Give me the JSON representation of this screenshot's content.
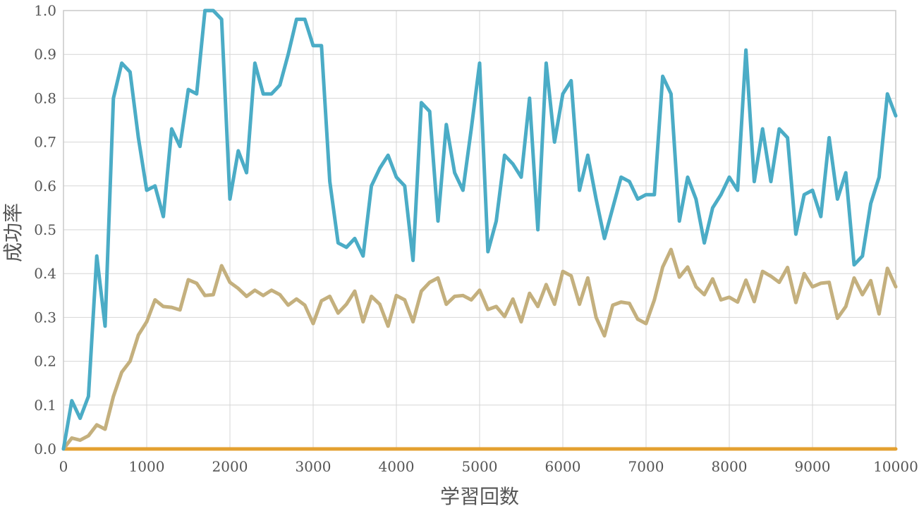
{
  "chart_data": {
    "type": "line",
    "xlabel": "学習回数",
    "ylabel": "成功率",
    "xlim": [
      0,
      10000
    ],
    "ylim": [
      0,
      1.0
    ],
    "x_ticks": [
      "0",
      "1000",
      "2000",
      "3000",
      "4000",
      "5000",
      "6000",
      "7000",
      "8000",
      "9000",
      "10000"
    ],
    "y_ticks": [
      "0.0",
      "0.1",
      "0.2",
      "0.3",
      "0.4",
      "0.5",
      "0.6",
      "0.7",
      "0.8",
      "0.9",
      "1.0"
    ],
    "grid": true,
    "x": [
      0,
      100,
      200,
      300,
      400,
      500,
      600,
      700,
      800,
      900,
      1000,
      1100,
      1200,
      1300,
      1400,
      1500,
      1600,
      1700,
      1800,
      1900,
      2000,
      2100,
      2200,
      2300,
      2400,
      2500,
      2600,
      2700,
      2800,
      2900,
      3000,
      3100,
      3200,
      3300,
      3400,
      3500,
      3600,
      3700,
      3800,
      3900,
      4000,
      4100,
      4200,
      4300,
      4400,
      4500,
      4600,
      4700,
      4800,
      4900,
      5000,
      5100,
      5200,
      5300,
      5400,
      5500,
      5600,
      5700,
      5800,
      5900,
      6000,
      6100,
      6200,
      6300,
      6400,
      6500,
      6600,
      6700,
      6800,
      6900,
      7000,
      7100,
      7200,
      7300,
      7400,
      7500,
      7600,
      7700,
      7800,
      7900,
      8000,
      8100,
      8200,
      8300,
      8400,
      8500,
      8600,
      8700,
      8800,
      8900,
      9000,
      9100,
      9200,
      9300,
      9400,
      9500,
      9600,
      9700,
      9800,
      9900,
      10000
    ],
    "series": [
      {
        "color": "#4bacc6",
        "values": [
          0.0,
          0.11,
          0.07,
          0.12,
          0.44,
          0.28,
          0.8,
          0.88,
          0.86,
          0.71,
          0.59,
          0.6,
          0.53,
          0.73,
          0.69,
          0.82,
          0.81,
          1.0,
          1.0,
          0.98,
          0.57,
          0.68,
          0.63,
          0.88,
          0.81,
          0.81,
          0.83,
          0.9,
          0.98,
          0.98,
          0.92,
          0.92,
          0.61,
          0.47,
          0.46,
          0.48,
          0.44,
          0.6,
          0.64,
          0.67,
          0.62,
          0.6,
          0.43,
          0.79,
          0.77,
          0.52,
          0.74,
          0.63,
          0.59,
          0.73,
          0.88,
          0.45,
          0.52,
          0.67,
          0.65,
          0.62,
          0.8,
          0.5,
          0.88,
          0.7,
          0.81,
          0.84,
          0.59,
          0.67,
          0.57,
          0.48,
          0.55,
          0.62,
          0.61,
          0.57,
          0.58,
          0.58,
          0.85,
          0.81,
          0.52,
          0.62,
          0.57,
          0.47,
          0.55,
          0.58,
          0.62,
          0.59,
          0.91,
          0.61,
          0.73,
          0.61,
          0.73,
          0.71,
          0.49,
          0.58,
          0.59,
          0.53,
          0.71,
          0.57,
          0.63,
          0.42,
          0.44,
          0.56,
          0.62,
          0.81,
          0.76
        ]
      },
      {
        "color": "#c4b07e",
        "values": [
          0.0,
          0.025,
          0.02,
          0.03,
          0.055,
          0.045,
          0.12,
          0.175,
          0.2,
          0.26,
          0.29,
          0.34,
          0.325,
          0.323,
          0.317,
          0.386,
          0.378,
          0.35,
          0.352,
          0.418,
          0.38,
          0.366,
          0.348,
          0.362,
          0.35,
          0.362,
          0.352,
          0.328,
          0.342,
          0.328,
          0.286,
          0.338,
          0.348,
          0.31,
          0.33,
          0.36,
          0.29,
          0.348,
          0.33,
          0.28,
          0.35,
          0.34,
          0.29,
          0.36,
          0.38,
          0.39,
          0.33,
          0.348,
          0.35,
          0.34,
          0.362,
          0.318,
          0.325,
          0.302,
          0.342,
          0.29,
          0.355,
          0.325,
          0.375,
          0.33,
          0.405,
          0.395,
          0.33,
          0.39,
          0.3,
          0.258,
          0.328,
          0.335,
          0.332,
          0.296,
          0.286,
          0.34,
          0.415,
          0.455,
          0.392,
          0.415,
          0.37,
          0.352,
          0.388,
          0.34,
          0.346,
          0.335,
          0.385,
          0.336,
          0.405,
          0.394,
          0.38,
          0.414,
          0.334,
          0.4,
          0.37,
          0.378,
          0.38,
          0.298,
          0.325,
          0.39,
          0.352,
          0.384,
          0.308,
          0.412,
          0.37
        ]
      },
      {
        "color": "#e4a030",
        "values": [
          0.0,
          0.0,
          0.0,
          0.0,
          0.0,
          0.0,
          0.0,
          0.0,
          0.0,
          0.0,
          0.0,
          0.0,
          0.0,
          0.0,
          0.0,
          0.0,
          0.0,
          0.0,
          0.0,
          0.0,
          0.0,
          0.0,
          0.0,
          0.0,
          0.0,
          0.0,
          0.0,
          0.0,
          0.0,
          0.0,
          0.0,
          0.0,
          0.0,
          0.0,
          0.0,
          0.0,
          0.0,
          0.0,
          0.0,
          0.0,
          0.0,
          0.0,
          0.0,
          0.0,
          0.0,
          0.0,
          0.0,
          0.0,
          0.0,
          0.0,
          0.0,
          0.0,
          0.0,
          0.0,
          0.0,
          0.0,
          0.0,
          0.0,
          0.0,
          0.0,
          0.0,
          0.0,
          0.0,
          0.0,
          0.0,
          0.0,
          0.0,
          0.0,
          0.0,
          0.0,
          0.0,
          0.0,
          0.0,
          0.0,
          0.0,
          0.0,
          0.0,
          0.0,
          0.0,
          0.0,
          0.0,
          0.0,
          0.0,
          0.0,
          0.0,
          0.0,
          0.0,
          0.0,
          0.0,
          0.0,
          0.0,
          0.0,
          0.0,
          0.0,
          0.0,
          0.0,
          0.0,
          0.0,
          0.0,
          0.0,
          0.0
        ]
      }
    ]
  }
}
